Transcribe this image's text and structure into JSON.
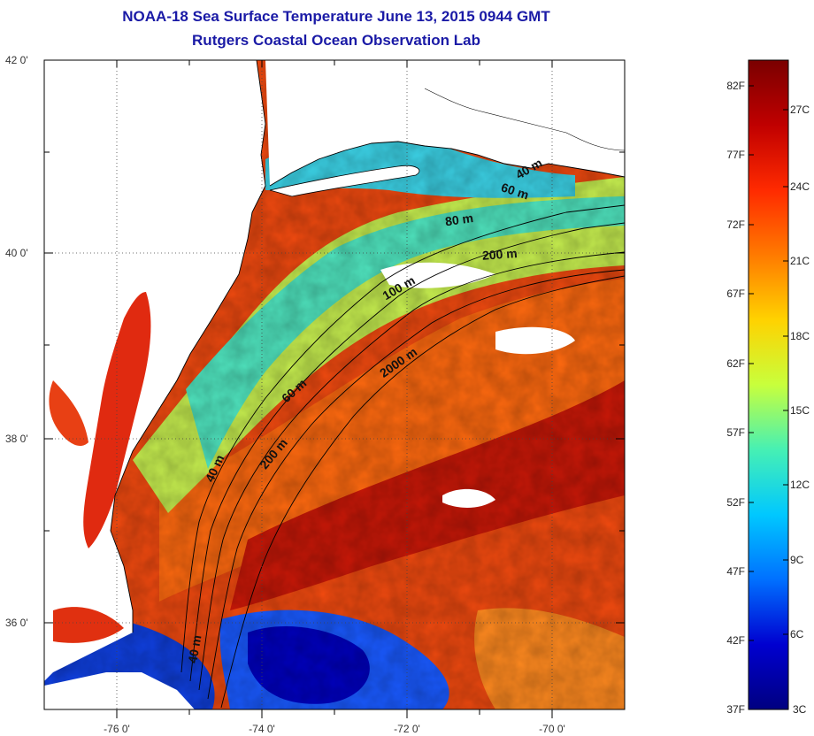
{
  "title": {
    "line1": "NOAA-18 Sea Surface Temperature June 13, 2015 0944 GMT",
    "line2": "Rutgers Coastal Ocean Observation Lab"
  },
  "map": {
    "lat_labels": [
      "42 0'",
      "40 0'",
      "38 0'",
      "36 0'"
    ],
    "lon_labels": [
      "-76 0'",
      "-74 0'",
      "-72 0'",
      "-70 0'"
    ],
    "contour_labels": [
      "40 m",
      "60 m",
      "80 m",
      "200 m",
      "100 m",
      "2000 m",
      "60 m",
      "200 m",
      "40 m",
      "40 m"
    ],
    "colors": {
      "land": "#ffffff",
      "coastline": "#000000",
      "grid": "#555555"
    }
  },
  "colorbar": {
    "fahrenheit_labels": [
      "82F",
      "77F",
      "72F",
      "67F",
      "62F",
      "57F",
      "52F",
      "47F",
      "42F",
      "37F"
    ],
    "celsius_labels": [
      "27C",
      "24C",
      "21C",
      "18C",
      "15C",
      "12C",
      "9C",
      "6C",
      "3C"
    ],
    "gradient_colors": [
      "#7a0000",
      "#c00000",
      "#ff2a00",
      "#ff7a00",
      "#ffd200",
      "#c8ff3c",
      "#46f0b4",
      "#00c8ff",
      "#0070ff",
      "#0000d0",
      "#000080"
    ]
  }
}
